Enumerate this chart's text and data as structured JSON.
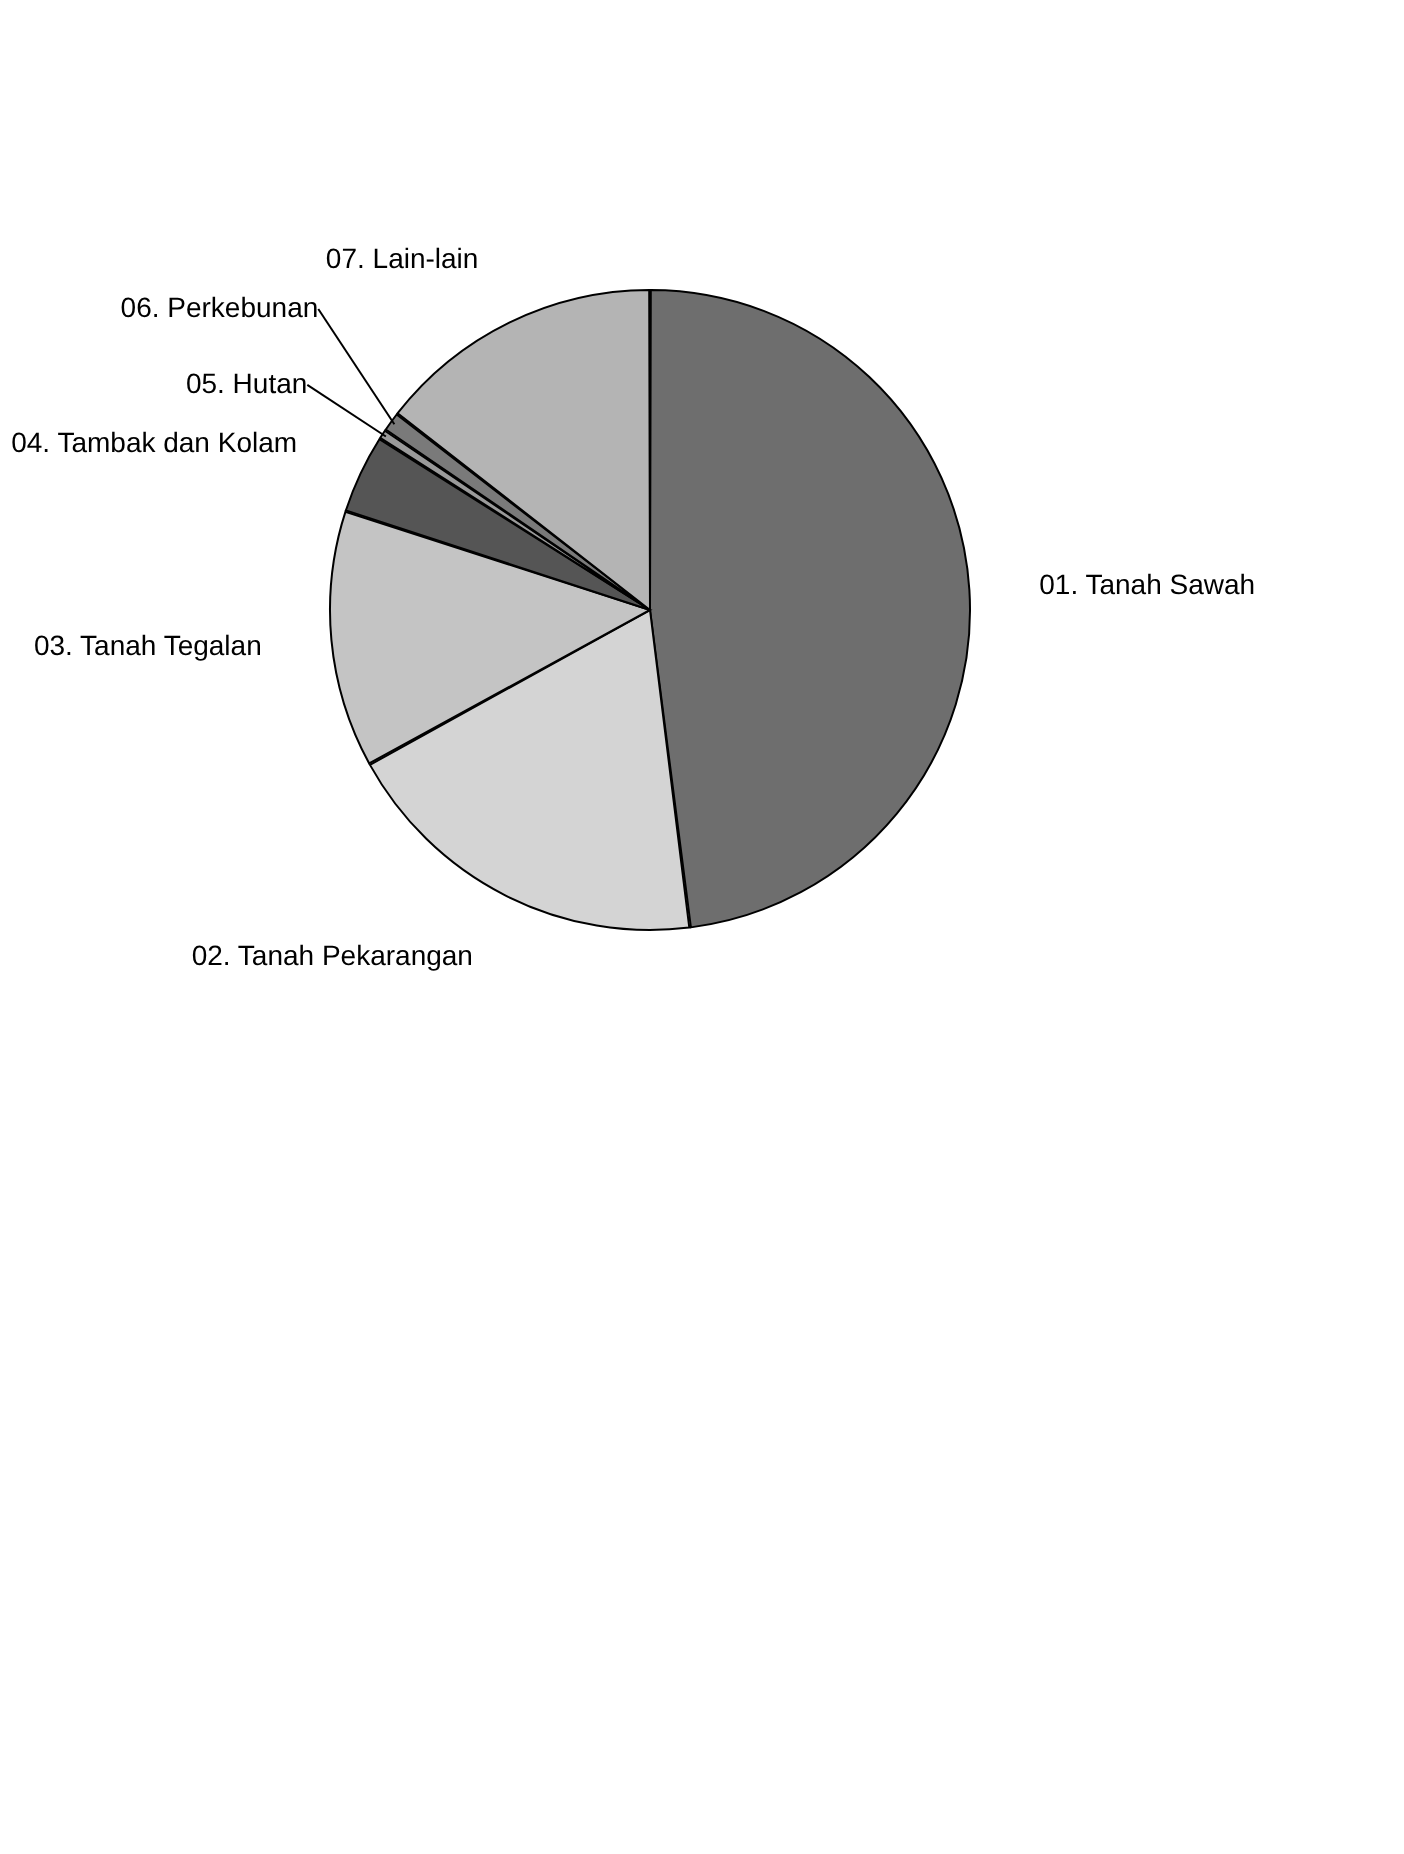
{
  "chart_data": {
    "type": "pie",
    "categories": [
      "01. Tanah Sawah",
      "02. Tanah Pekarangan",
      "03. Tanah Tegalan",
      "04. Tambak dan Kolam",
      "05. Hutan",
      "06. Perkebunan",
      "07. Lain-lain"
    ],
    "values": [
      48,
      19,
      13,
      4,
      0.5,
      1,
      14.5
    ],
    "colors": [
      "#6e6e6e",
      "#d4d4d4",
      "#c4c4c4",
      "#555555",
      "#9a9a9a",
      "#7a7a7a",
      "#b4b4b4"
    ],
    "legend": false
  }
}
